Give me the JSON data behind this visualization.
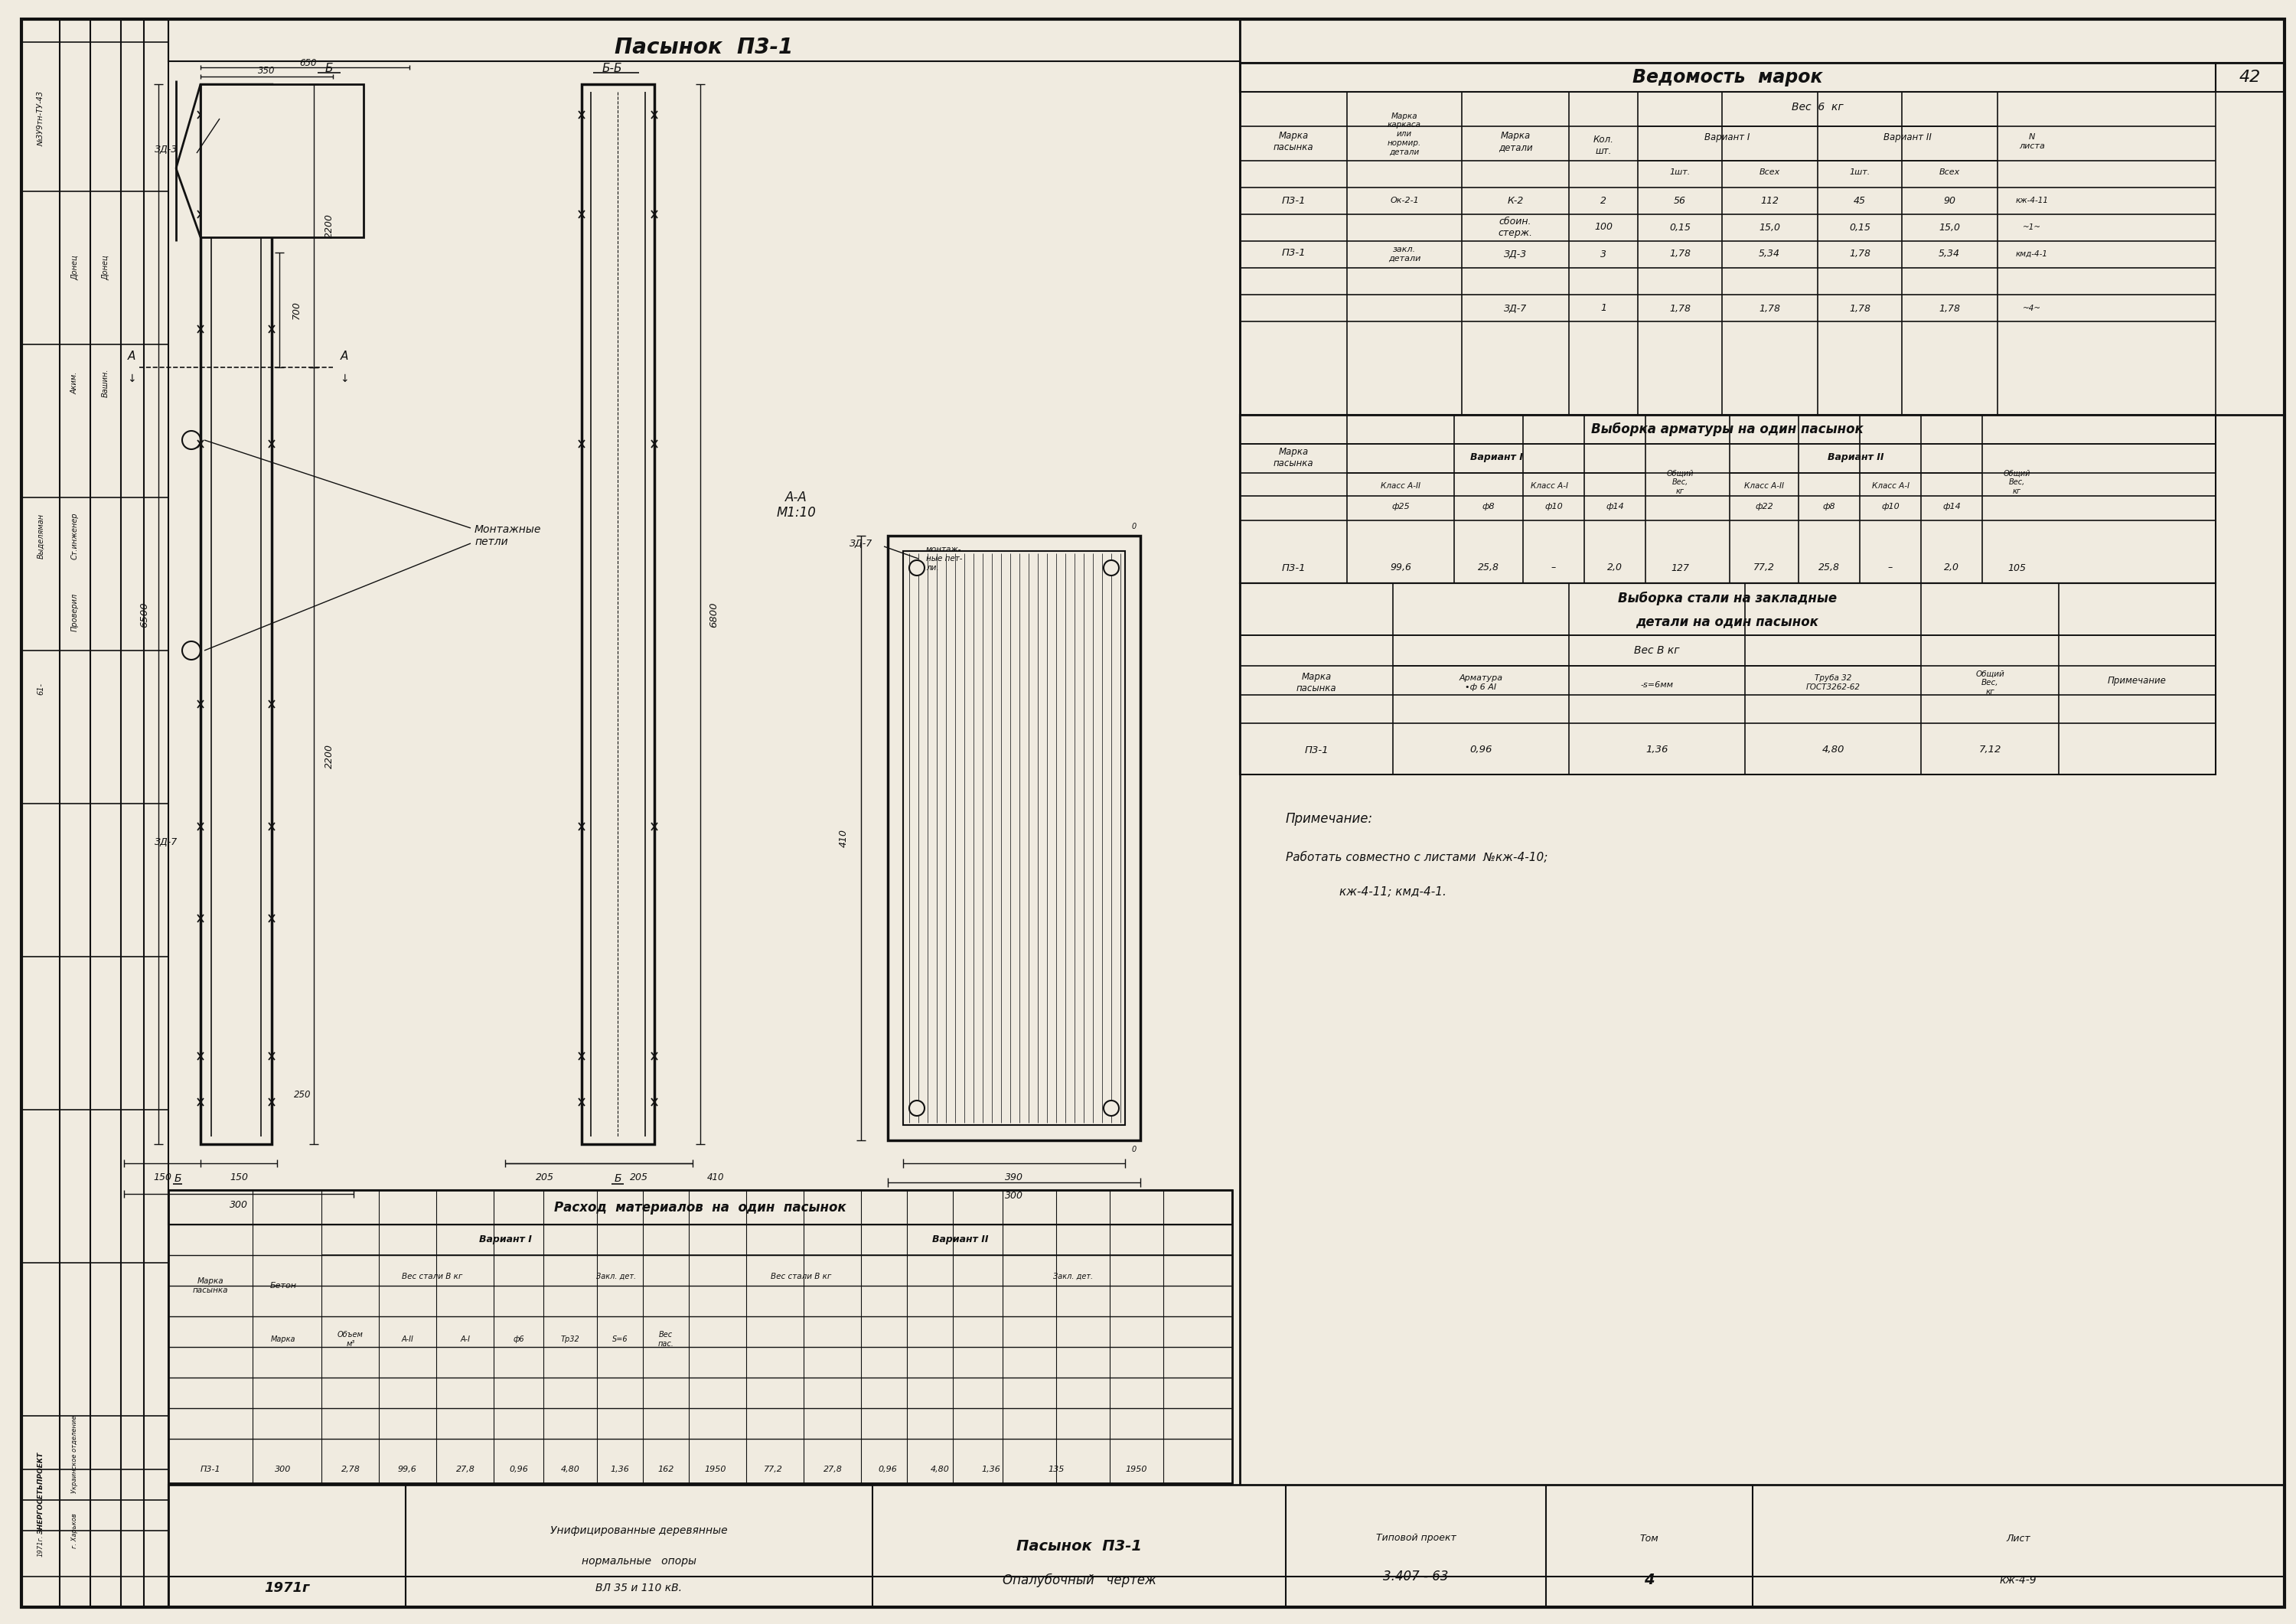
{
  "bg_color": "#f0ebe0",
  "line_color": "#111111",
  "title_text": "Пасынок  П3-1",
  "section_BB": "Б-Б",
  "section_B": "Б",
  "label_AA": "А-А\nМ1:10",
  "montazh": "Монтажные\nпетли",
  "label_ZD3": "ЗД-3",
  "label_ZD7": "ЗД-7",
  "dim_6500": "6500",
  "dim_6800": "6800",
  "dim_2200": "2200",
  "dim_2200b": "2200",
  "dim_350": "350",
  "dim_650": "650",
  "dim_700": "700",
  "dim_300": "300",
  "dim_410": "410",
  "dim_390": "390",
  "dim_150a": "150",
  "dim_150b": "150",
  "dim_205a": "205",
  "dim_205b": "205",
  "dim_250": "250",
  "stamp_num": "№3У9тн-ТУ-43",
  "vedmost_title": "Ведомость  марок",
  "ved_page": "42",
  "rasxod_title": "Расход  материалов  на  один  пасынок",
  "variant1": "Вариант I",
  "variant2": "Вариант II",
  "vybArm_title": "Выборка арматуры на один пасынок",
  "vybStal_title1": "Выборка стали на закладные",
  "vybStal_title2": "детали на один пасынок",
  "note_title": "Примечание:",
  "note_line1": "Работать совместно с листами  №кж-4-10;",
  "note_line2": "кж-4-11; кмд-4-1.",
  "org1": "ЭНЕРГОСЕТЬПРОЕКТ",
  "org2": "Украинское отделение",
  "org3": "г. Харьков",
  "year": "1971г",
  "desc1": "Унифицированные деревянные",
  "desc2": "нормальные   опоры",
  "desc3": "ВЛ 35 и 110 кВ.",
  "proj_name1": "Пасынок  П3-1",
  "proj_name2": "Опалубочный   чертеж",
  "proj_type": "Типовой проект",
  "proj_num": "3.407 - 63",
  "tom_label": "Том",
  "tom_val": "4",
  "list_label": "Лист",
  "list_val": "кж-4-9"
}
